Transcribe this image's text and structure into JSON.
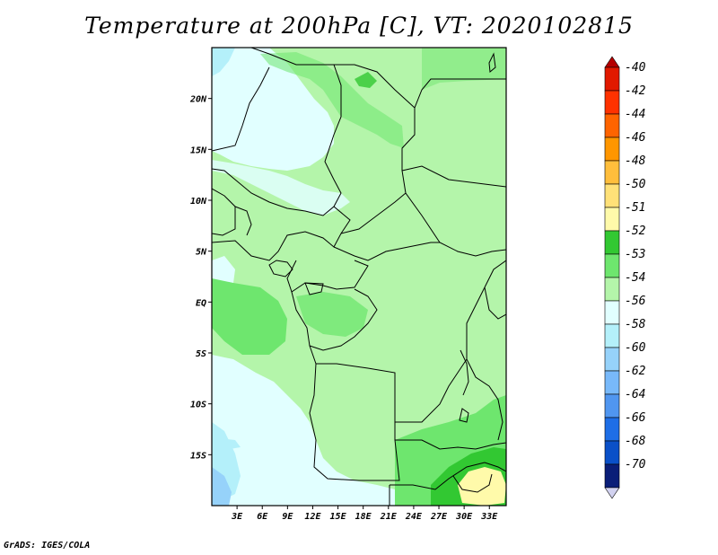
{
  "title": "Temperature at 200hPa [C], VT: 2020102815",
  "credit": "GrADS: IGES/COLA",
  "map": {
    "lat_ticks": [
      {
        "label": "20N",
        "lat": 20
      },
      {
        "label": "15N",
        "lat": 15
      },
      {
        "label": "10N",
        "lat": 10
      },
      {
        "label": "5N",
        "lat": 5
      },
      {
        "label": "EQ",
        "lat": 0
      },
      {
        "label": "5S",
        "lat": -5
      },
      {
        "label": "10S",
        "lat": -10
      },
      {
        "label": "15S",
        "lat": -15
      }
    ],
    "lon_ticks": [
      {
        "label": "3E",
        "lon": 3
      },
      {
        "label": "6E",
        "lon": 6
      },
      {
        "label": "9E",
        "lon": 9
      },
      {
        "label": "12E",
        "lon": 12
      },
      {
        "label": "15E",
        "lon": 15
      },
      {
        "label": "18E",
        "lon": 18
      },
      {
        "label": "21E",
        "lon": 21
      },
      {
        "label": "24E",
        "lon": 24
      },
      {
        "label": "27E",
        "lon": 27
      },
      {
        "label": "30E",
        "lon": 30
      },
      {
        "label": "33E",
        "lon": 33
      }
    ],
    "lon_range": [
      0,
      35
    ],
    "lat_range": [
      -20,
      25
    ]
  },
  "colorbar": {
    "levels": [
      {
        "label": "-40",
        "color": "#e11900"
      },
      {
        "label": "-42",
        "color": "#ff3200"
      },
      {
        "label": "-44",
        "color": "#ff6400"
      },
      {
        "label": "-46",
        "color": "#ff9600"
      },
      {
        "label": "-48",
        "color": "#ffbe3c"
      },
      {
        "label": "-50",
        "color": "#ffe178"
      },
      {
        "label": "-51",
        "color": "#fffaaa"
      },
      {
        "label": "-52",
        "color": "#32c832"
      },
      {
        "label": "-53",
        "color": "#6ee66e"
      },
      {
        "label": "-54",
        "color": "#b4f5aa"
      },
      {
        "label": "-56",
        "color": "#e1ffff"
      },
      {
        "label": "-58",
        "color": "#b4f0fa"
      },
      {
        "label": "-60",
        "color": "#96d2fa"
      },
      {
        "label": "-62",
        "color": "#78b9fa"
      },
      {
        "label": "-64",
        "color": "#5096f0"
      },
      {
        "label": "-66",
        "color": "#1e6ee6"
      },
      {
        "label": "-68",
        "color": "#0a50c8"
      },
      {
        "label": "-70",
        "color": "#0a1e78"
      }
    ],
    "bottom_color": "#d2d2f0",
    "top_color": "#b40000"
  }
}
